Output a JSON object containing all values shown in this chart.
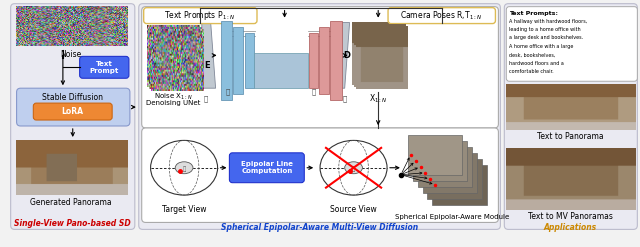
{
  "fig_width": 6.4,
  "fig_height": 2.47,
  "dpi": 100,
  "bg_color": "#f2f2f2",
  "left_label": "Single-View Pano-based SD",
  "center_label": "Spherical Epipolar-Aware Multi-View Diffusion",
  "right_label": "Applications",
  "left_label_color": "#cc0000",
  "center_label_color": "#1144cc",
  "right_label_color": "#cc8800",
  "noise_label": "Noise",
  "text_prompt_label": "Text\nPrompt",
  "stable_diffusion_label": "Stable Diffusion",
  "lora_label": "LoRA",
  "generated_pano_label": "Generated Panorama",
  "noise_x_label": "Noise X$_{1:N}$",
  "denoising_unet_label": "Denoising UNet",
  "x_out_label": "X$_{1:N}$",
  "text_prompts_top_label": "Text Prompts P$_{1:N}$",
  "camera_poses_label": "Camera Poses R,T$_{1:N}$",
  "target_view_label": "Target View",
  "source_view_label": "Source View",
  "epipolar_label": "Epipolar Line\nComputation",
  "spherical_module_label": "Spherical Epipolar-Aware Module",
  "text_to_pano_label": "Text to Panorama",
  "text_to_mv_label": "Text to MV Panoramas",
  "e_label": "E",
  "d_label": "D"
}
